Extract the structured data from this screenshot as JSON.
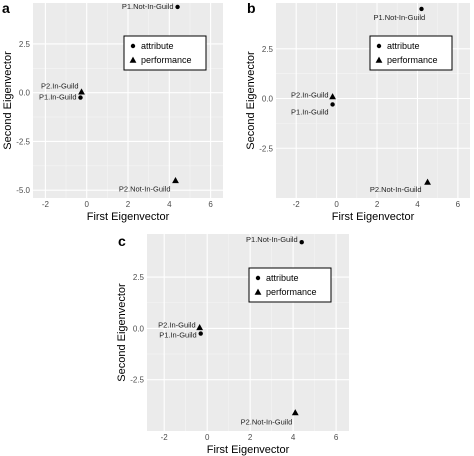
{
  "panels": [
    "a",
    "b",
    "c"
  ],
  "chart_data": [
    {
      "type": "scatter",
      "panel": "a",
      "xlabel": "First Eigenvector",
      "ylabel": "Second Eigenvector",
      "xlim": [
        -2.6,
        6.6
      ],
      "ylim": [
        -5.4,
        4.6
      ],
      "xticks": [
        -2,
        0,
        2,
        4,
        6
      ],
      "yticks": [
        2.5,
        0.0,
        -2.5,
        -5.0
      ],
      "ytick_labels": [
        "2.5",
        "0.0",
        "-2.5",
        "-5.0"
      ],
      "grid": true,
      "legend": {
        "position": "top-right",
        "entries": [
          "attribute",
          "performance"
        ]
      },
      "series": [
        {
          "name": "attribute",
          "marker": "circle",
          "points": [
            {
              "label": "P1.Not-In-Guild",
              "x": 4.4,
              "y": 4.4
            },
            {
              "label": "P1.In-Guild",
              "x": -0.3,
              "y": -0.25
            }
          ]
        },
        {
          "name": "performance",
          "marker": "triangle",
          "points": [
            {
              "label": "P2.In-Guild",
              "x": -0.25,
              "y": 0.05
            },
            {
              "label": "P2.Not-In-Guild",
              "x": 4.3,
              "y": -4.5
            }
          ]
        }
      ]
    },
    {
      "type": "scatter",
      "panel": "b",
      "xlabel": "First Eigenvector",
      "ylabel": "Second Eigenvector",
      "xlim": [
        -3.0,
        6.6
      ],
      "ylim": [
        -5.0,
        4.8
      ],
      "xticks": [
        -2,
        0,
        2,
        4,
        6
      ],
      "yticks": [
        2.5,
        0.0,
        -2.5
      ],
      "ytick_labels": [
        "2.5",
        "0.0",
        "-2.5"
      ],
      "grid": true,
      "legend": {
        "position": "top-right",
        "entries": [
          "attribute",
          "performance"
        ]
      },
      "series": [
        {
          "name": "attribute",
          "marker": "circle",
          "points": [
            {
              "label": "P1.Not-In-Guild",
              "x": 4.2,
              "y": 4.5
            },
            {
              "label": "P1.In-Guild",
              "x": -0.2,
              "y": -0.3
            }
          ]
        },
        {
          "name": "performance",
          "marker": "triangle",
          "points": [
            {
              "label": "P2.In-Guild",
              "x": -0.2,
              "y": 0.1
            },
            {
              "label": "P2.Not-In-Guild",
              "x": 4.5,
              "y": -4.2
            }
          ]
        }
      ]
    },
    {
      "type": "scatter",
      "panel": "c",
      "xlabel": "First Eigenvector",
      "ylabel": "Second Eigenvector",
      "xlim": [
        -2.8,
        6.6
      ],
      "ylim": [
        -5.0,
        4.6
      ],
      "xticks": [
        -2,
        0,
        2,
        4,
        6
      ],
      "yticks": [
        2.5,
        0.0,
        -2.5
      ],
      "ytick_labels": [
        "2.5",
        "0.0",
        "-2.5"
      ],
      "grid": true,
      "legend": {
        "position": "top-right",
        "entries": [
          "attribute",
          "performance"
        ]
      },
      "series": [
        {
          "name": "attribute",
          "marker": "circle",
          "points": [
            {
              "label": "P1.Not-In-Guild",
              "x": 4.4,
              "y": 4.2
            },
            {
              "label": "P1.In-Guild",
              "x": -0.3,
              "y": -0.25
            }
          ]
        },
        {
          "name": "performance",
          "marker": "triangle",
          "points": [
            {
              "label": "P2.In-Guild",
              "x": -0.35,
              "y": 0.05
            },
            {
              "label": "P2.Not-In-Guild",
              "x": 4.1,
              "y": -4.1
            }
          ]
        }
      ]
    }
  ]
}
